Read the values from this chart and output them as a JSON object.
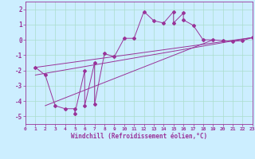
{
  "xlabel": "Windchill (Refroidissement éolien,°C)",
  "background_color": "#cceeff",
  "grid_color": "#aaddcc",
  "line_color": "#993399",
  "xlim": [
    0,
    23
  ],
  "ylim": [
    -5.5,
    2.5
  ],
  "xticks": [
    0,
    1,
    2,
    3,
    4,
    5,
    6,
    7,
    8,
    9,
    10,
    11,
    12,
    13,
    14,
    15,
    16,
    17,
    18,
    19,
    20,
    21,
    22,
    23
  ],
  "yticks": [
    -5,
    -4,
    -3,
    -2,
    -1,
    0,
    1,
    2
  ],
  "scatter_x": [
    1,
    2,
    3,
    4,
    5,
    5,
    6,
    6,
    7,
    7,
    8,
    9,
    10,
    11,
    12,
    13,
    14,
    15,
    15,
    16,
    16,
    17,
    18,
    19,
    20,
    21,
    22,
    23
  ],
  "scatter_y": [
    -1.8,
    -2.3,
    -4.3,
    -4.5,
    -4.5,
    -4.8,
    -2.0,
    -4.3,
    -1.5,
    -4.2,
    -0.9,
    -1.1,
    0.1,
    0.1,
    1.85,
    1.25,
    1.1,
    1.85,
    1.1,
    1.75,
    1.3,
    0.95,
    0.0,
    0.0,
    -0.05,
    -0.1,
    -0.05,
    0.15
  ],
  "line1_x": [
    1,
    23
  ],
  "line1_y": [
    -1.8,
    0.15
  ],
  "line2_x": [
    1,
    23
  ],
  "line2_y": [
    -2.3,
    0.15
  ],
  "line3_x": [
    2,
    19
  ],
  "line3_y": [
    -4.3,
    0.0
  ]
}
